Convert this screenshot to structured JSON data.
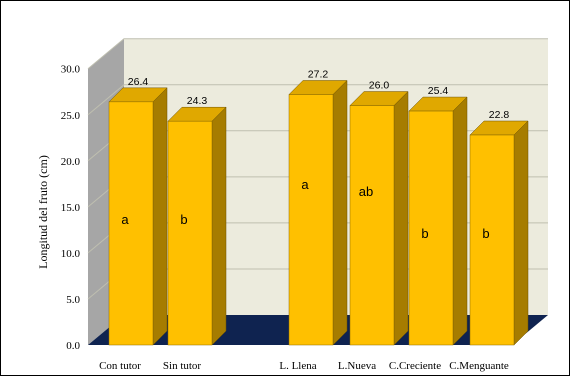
{
  "chart_data": {
    "type": "bar",
    "title": "",
    "xlabel": "",
    "ylabel": "Longitud del fruto (cm)",
    "ylim": [
      0,
      30
    ],
    "yticks": [
      "0.0",
      "5.0",
      "10.0",
      "15.0",
      "20.0",
      "25.0",
      "30.0"
    ],
    "grid": true,
    "legend": "none",
    "categories": [
      "Con tutor",
      "Sin tutor",
      "L. Llena",
      "L.Nueva",
      "C.Creciente",
      "C.Menguante"
    ],
    "values": [
      26.4,
      24.3,
      27.2,
      26.0,
      25.4,
      22.8
    ],
    "data_labels": [
      "26.4",
      "24.3",
      "27.2",
      "26.0",
      "25.4",
      "22.8"
    ],
    "significance_letters": [
      "a",
      "b",
      "a",
      "ab",
      "b",
      "b"
    ]
  },
  "colors": {
    "bar_front": "#FFC000",
    "bar_side": "#A67C00",
    "bar_top": "#E0A800",
    "back_wall": "#ECEBDD",
    "side_wall": "#A6A6A6",
    "floor": "#0F2350",
    "gridline": "#BFBFB0",
    "outline": "#000000"
  }
}
